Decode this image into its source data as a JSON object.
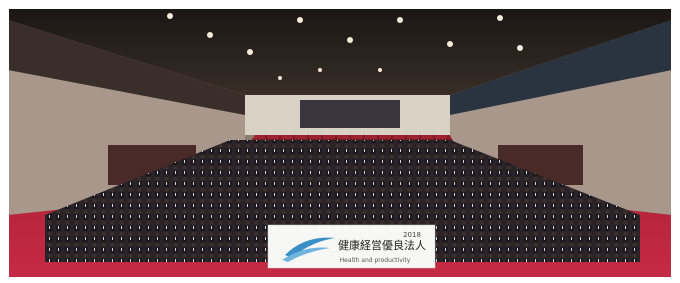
{
  "banner": {
    "title": "健康経営優良法人",
    "year": "2018",
    "subtitle": "Health and productivity"
  }
}
